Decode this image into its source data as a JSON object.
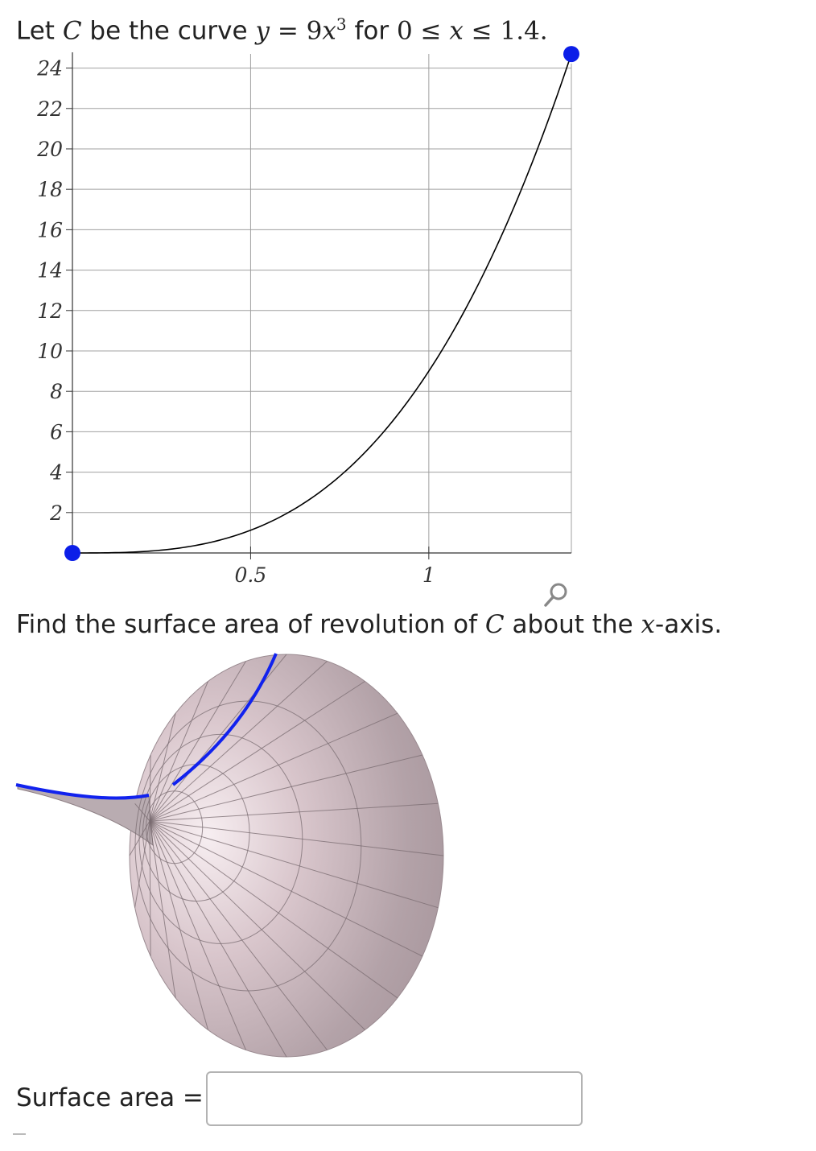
{
  "question": {
    "p1": "Let ",
    "C": "C",
    "p2": " be the curve ",
    "y": "y",
    "eq": " = 9",
    "x": "x",
    "exp": "3",
    "p3": " for ",
    "ineq1": "0 ≤ ",
    "ineq_x": "x",
    "ineq2": " ≤ 1.4."
  },
  "find": {
    "p1": "Find the surface area of revolution of ",
    "C": "C",
    "p2": " about the ",
    "x": "x",
    "p3": "-axis."
  },
  "answer": {
    "label": "Surface area =",
    "value": ""
  },
  "icons": {
    "zoom": "magnifier-icon"
  },
  "colors": {
    "curve": "#000000",
    "endpoint": "#0b1ee8",
    "grid": "#999999",
    "surface": "#ad9da3",
    "surface_curve": "#1122ee"
  },
  "chart_data": {
    "type": "line",
    "function": "9x^3",
    "domain": [
      0,
      1.4
    ],
    "xlim": [
      0,
      1.4
    ],
    "ylim": [
      0,
      24.7
    ],
    "x_ticks": [
      0.5,
      1
    ],
    "x_tick_labels": [
      "0.5",
      "1"
    ],
    "y_ticks": [
      2,
      4,
      6,
      8,
      10,
      12,
      14,
      16,
      18,
      20,
      22,
      24
    ],
    "y_tick_labels": [
      "2",
      "4",
      "6",
      "8",
      "10",
      "12",
      "14",
      "16",
      "18",
      "20",
      "22",
      "24"
    ],
    "grid": true,
    "series": [
      {
        "x": [
          0,
          0.1,
          0.2,
          0.3,
          0.4,
          0.5,
          0.6,
          0.7,
          0.8,
          0.9,
          1.0,
          1.1,
          1.2,
          1.3,
          1.4
        ],
        "y": [
          0,
          0.009,
          0.072,
          0.243,
          0.576,
          1.125,
          1.944,
          3.087,
          4.608,
          6.561,
          9.0,
          11.979,
          15.552,
          19.773,
          24.696
        ]
      }
    ],
    "endpoints": [
      {
        "x": 0,
        "y": 0
      },
      {
        "x": 1.4,
        "y": 24.696
      }
    ]
  }
}
